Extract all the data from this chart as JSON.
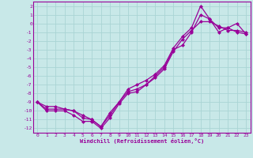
{
  "xlabel": "Windchill (Refroidissement éolien,°C)",
  "bg_color": "#c8e8e8",
  "grid_color": "#aad4d4",
  "line_color": "#990099",
  "xlim": [
    -0.5,
    23.5
  ],
  "ylim": [
    -12.5,
    2.5
  ],
  "xticks": [
    0,
    1,
    2,
    3,
    4,
    5,
    6,
    7,
    8,
    9,
    10,
    11,
    12,
    13,
    14,
    15,
    16,
    17,
    18,
    19,
    20,
    21,
    22,
    23
  ],
  "yticks": [
    2,
    1,
    0,
    -1,
    -2,
    -3,
    -4,
    -5,
    -6,
    -7,
    -8,
    -9,
    -10,
    -11,
    -12
  ],
  "line1_x": [
    0,
    1,
    2,
    3,
    4,
    5,
    6,
    7,
    8,
    9,
    10,
    11,
    12,
    13,
    14,
    15,
    16,
    17,
    18,
    19,
    20,
    21,
    22,
    23
  ],
  "line1_y": [
    -9,
    -10,
    -10,
    -10,
    -10.5,
    -11.2,
    -11.2,
    -12,
    -10.8,
    -9.2,
    -8,
    -7.8,
    -7,
    -6,
    -5,
    -3,
    -2.5,
    -1,
    1,
    0.5,
    -0.5,
    -0.5,
    -1,
    -1.2
  ],
  "line2_x": [
    0,
    1,
    2,
    3,
    4,
    5,
    6,
    7,
    8,
    9,
    10,
    11,
    12,
    13,
    14,
    15,
    16,
    17,
    18,
    19,
    20,
    21,
    22,
    23
  ],
  "line2_y": [
    -9,
    -9.8,
    -9.8,
    -9.8,
    -10,
    -10.8,
    -11.0,
    -11.8,
    -10.5,
    -9.0,
    -7.8,
    -7.5,
    -7.0,
    -6.2,
    -5.2,
    -3.2,
    -1.8,
    -0.8,
    0.2,
    0.2,
    -0.3,
    -0.8,
    -0.8,
    -1.0
  ],
  "line3_x": [
    0,
    1,
    2,
    3,
    4,
    5,
    6,
    7,
    8,
    9,
    10,
    11,
    12,
    13,
    14,
    15,
    16,
    17,
    18,
    19,
    20,
    21,
    22,
    23
  ],
  "line3_y": [
    -9,
    -9.5,
    -9.5,
    -9.8,
    -10,
    -10.5,
    -11.0,
    -11.8,
    -10.2,
    -9.0,
    -7.5,
    -7.0,
    -6.5,
    -5.8,
    -4.8,
    -2.8,
    -1.5,
    -0.5,
    2,
    0.5,
    -1,
    -0.5,
    0,
    -1.2
  ]
}
